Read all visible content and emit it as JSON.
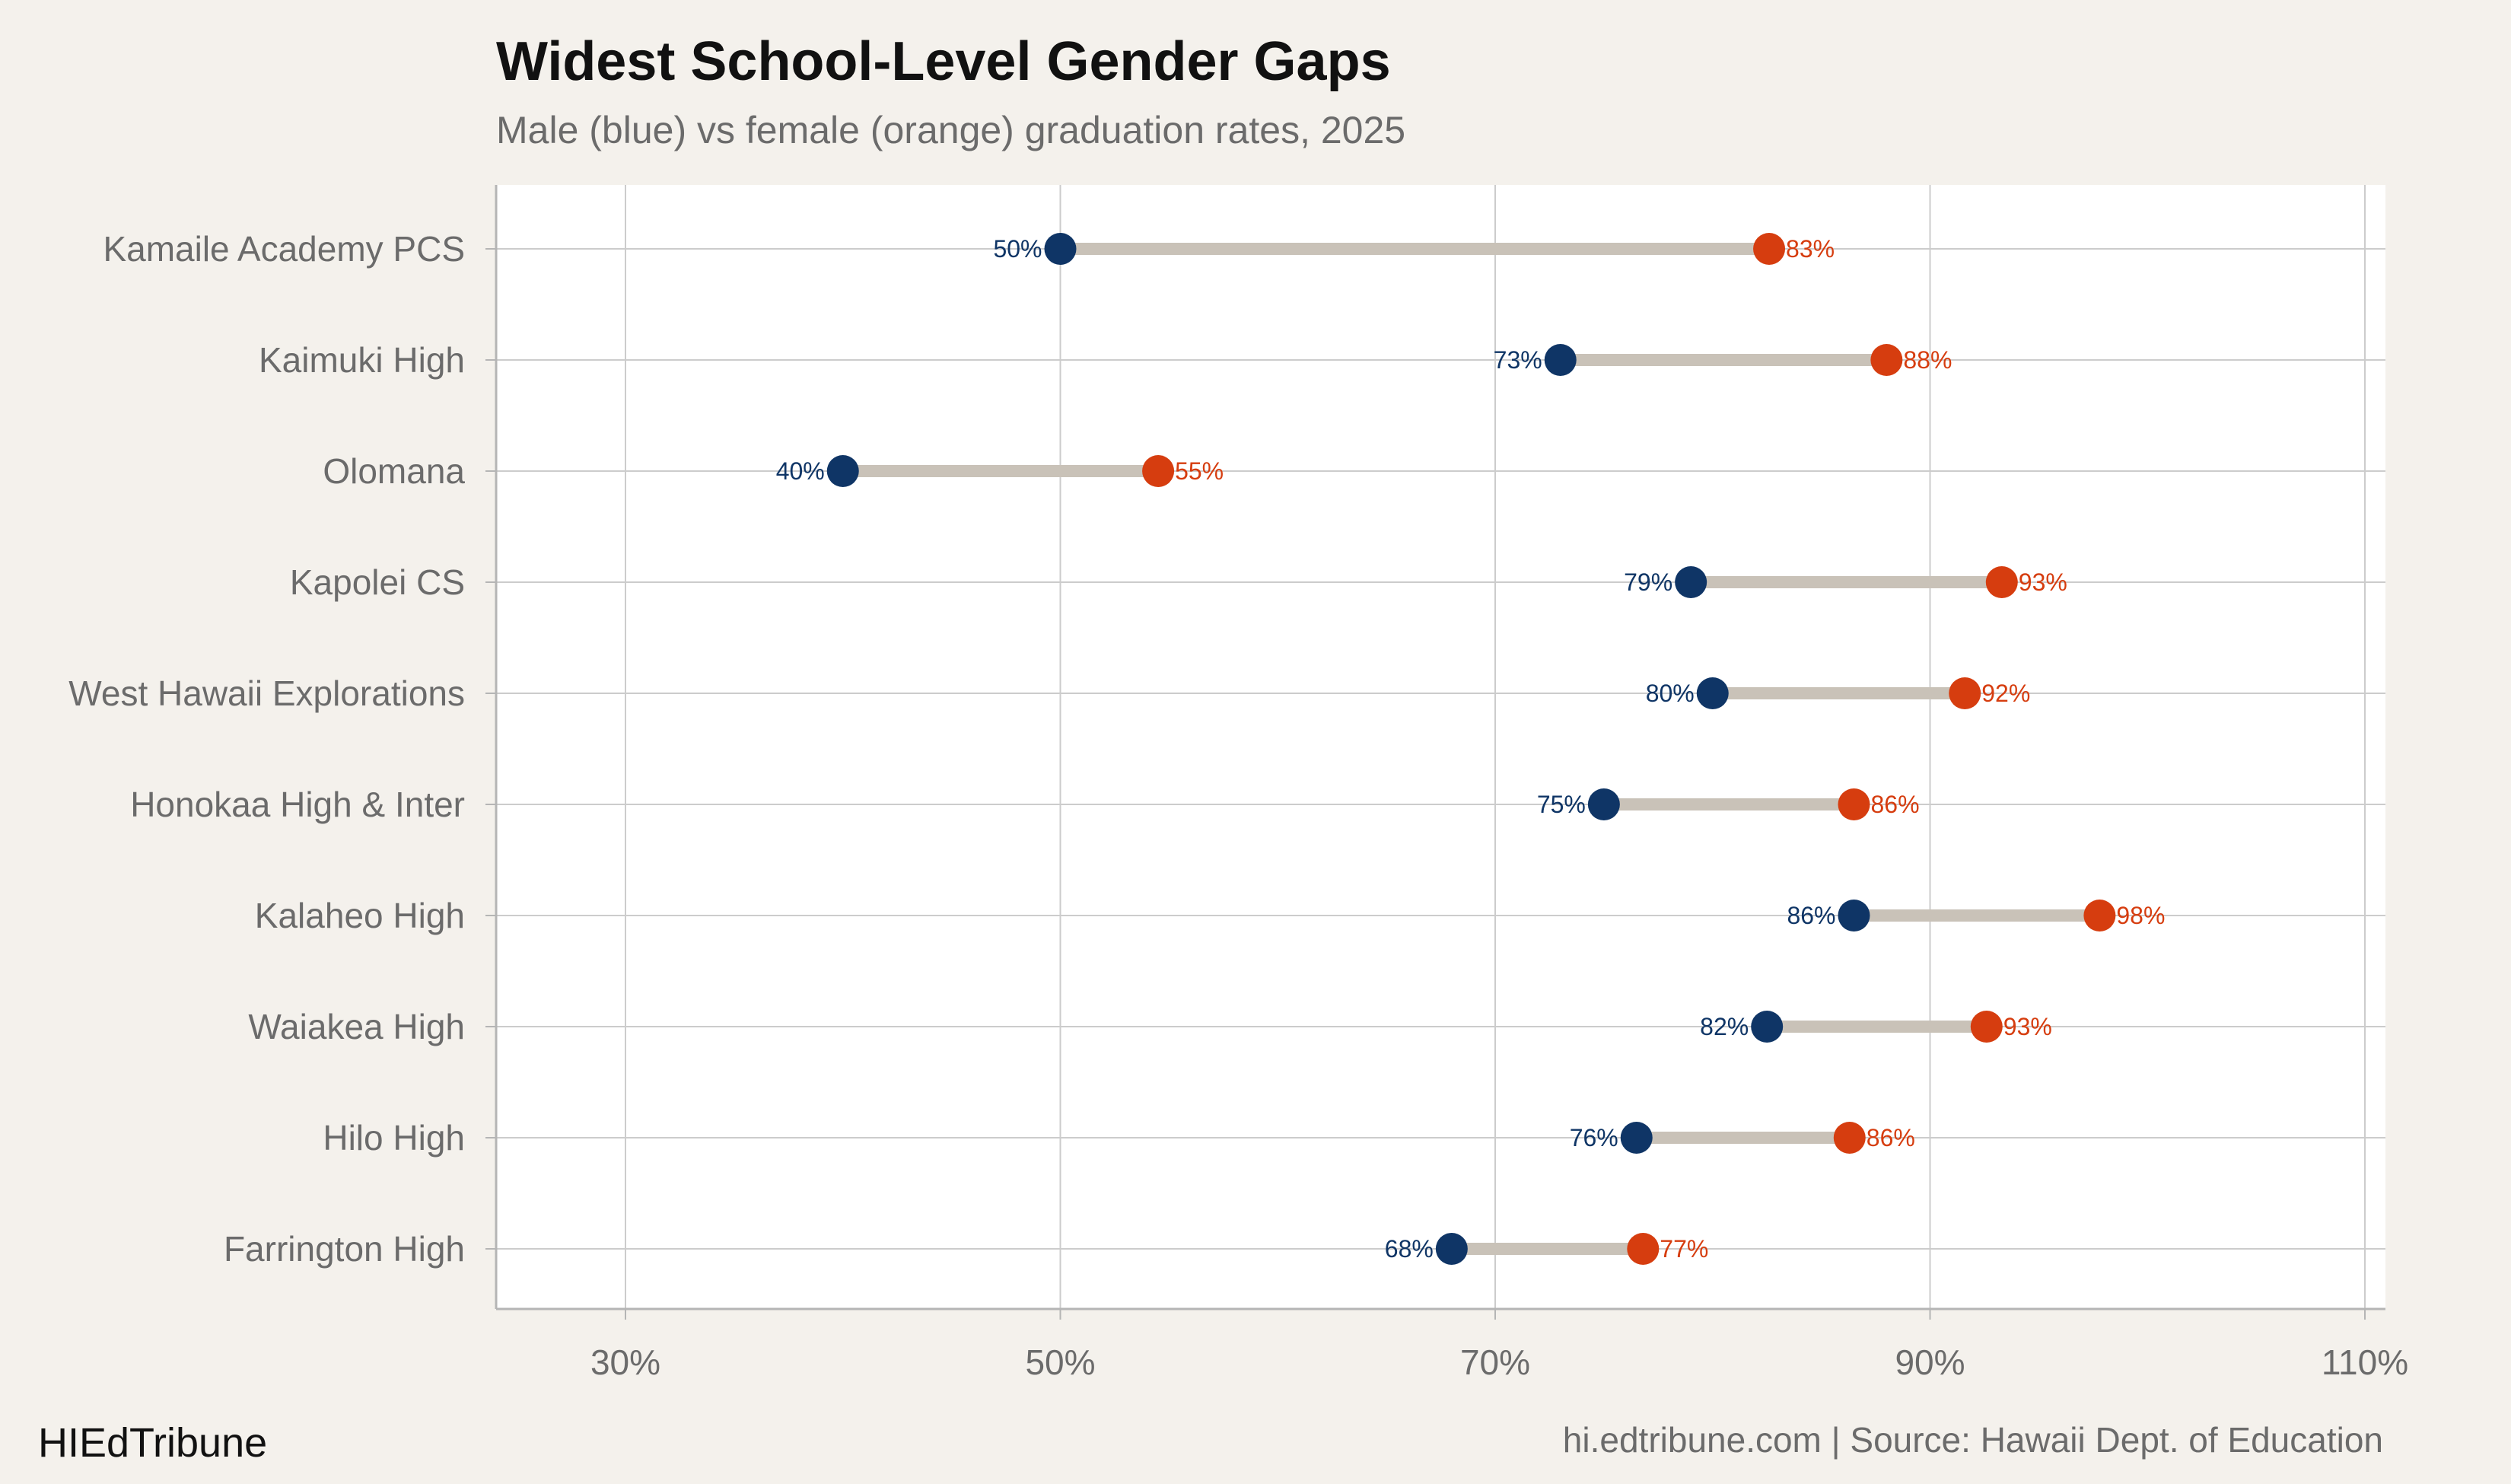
{
  "header": {
    "title": "Widest School-Level Gender Gaps",
    "subtitle": "Male (blue) vs female (orange) graduation rates, 2025"
  },
  "footer": {
    "brand": "HIEdTribune",
    "source": "hi.edtribune.com | Source: Hawaii Dept. of Education"
  },
  "colors": {
    "background": "#f4f1ec",
    "panel": "#ffffff",
    "male": "#0f3566",
    "female": "#d63d0f",
    "connector": "#c9c2b8",
    "grid": "#cccccc"
  },
  "chart_data": {
    "type": "dumbbell",
    "title": "Widest School-Level Gender Gaps",
    "subtitle": "Male (blue) vs female (orange) graduation rates, 2025",
    "xlim": [
      24,
      111
    ],
    "xticks": [
      30,
      50,
      70,
      90,
      110
    ],
    "xtick_labels": [
      "30%",
      "50%",
      "70%",
      "90%",
      "110%"
    ],
    "grid": true,
    "categories": [
      "Kamaile Academy PCS",
      "Kaimuki High",
      "Olomana",
      "Kapolei CS",
      "West Hawaii Explorations",
      "Honokaa High & Inter",
      "Kalaheo High",
      "Waiakea High",
      "Hilo High",
      "Farrington High"
    ],
    "series": [
      {
        "values": [
          50,
          73,
          40,
          79,
          80,
          75,
          86.5,
          82.5,
          76.5,
          68
        ],
        "labels": [
          "50%",
          "73%",
          "40%",
          "79%",
          "80%",
          "75%",
          "86%",
          "82%",
          "76%",
          "68%"
        ]
      },
      {
        "values": [
          82.6,
          88,
          54.5,
          93.3,
          91.6,
          86.5,
          97.8,
          92.6,
          86.3,
          76.8
        ],
        "labels": [
          "83%",
          "88%",
          "55%",
          "93%",
          "92%",
          "86%",
          "98%",
          "93%",
          "86%",
          "77%"
        ]
      }
    ]
  }
}
